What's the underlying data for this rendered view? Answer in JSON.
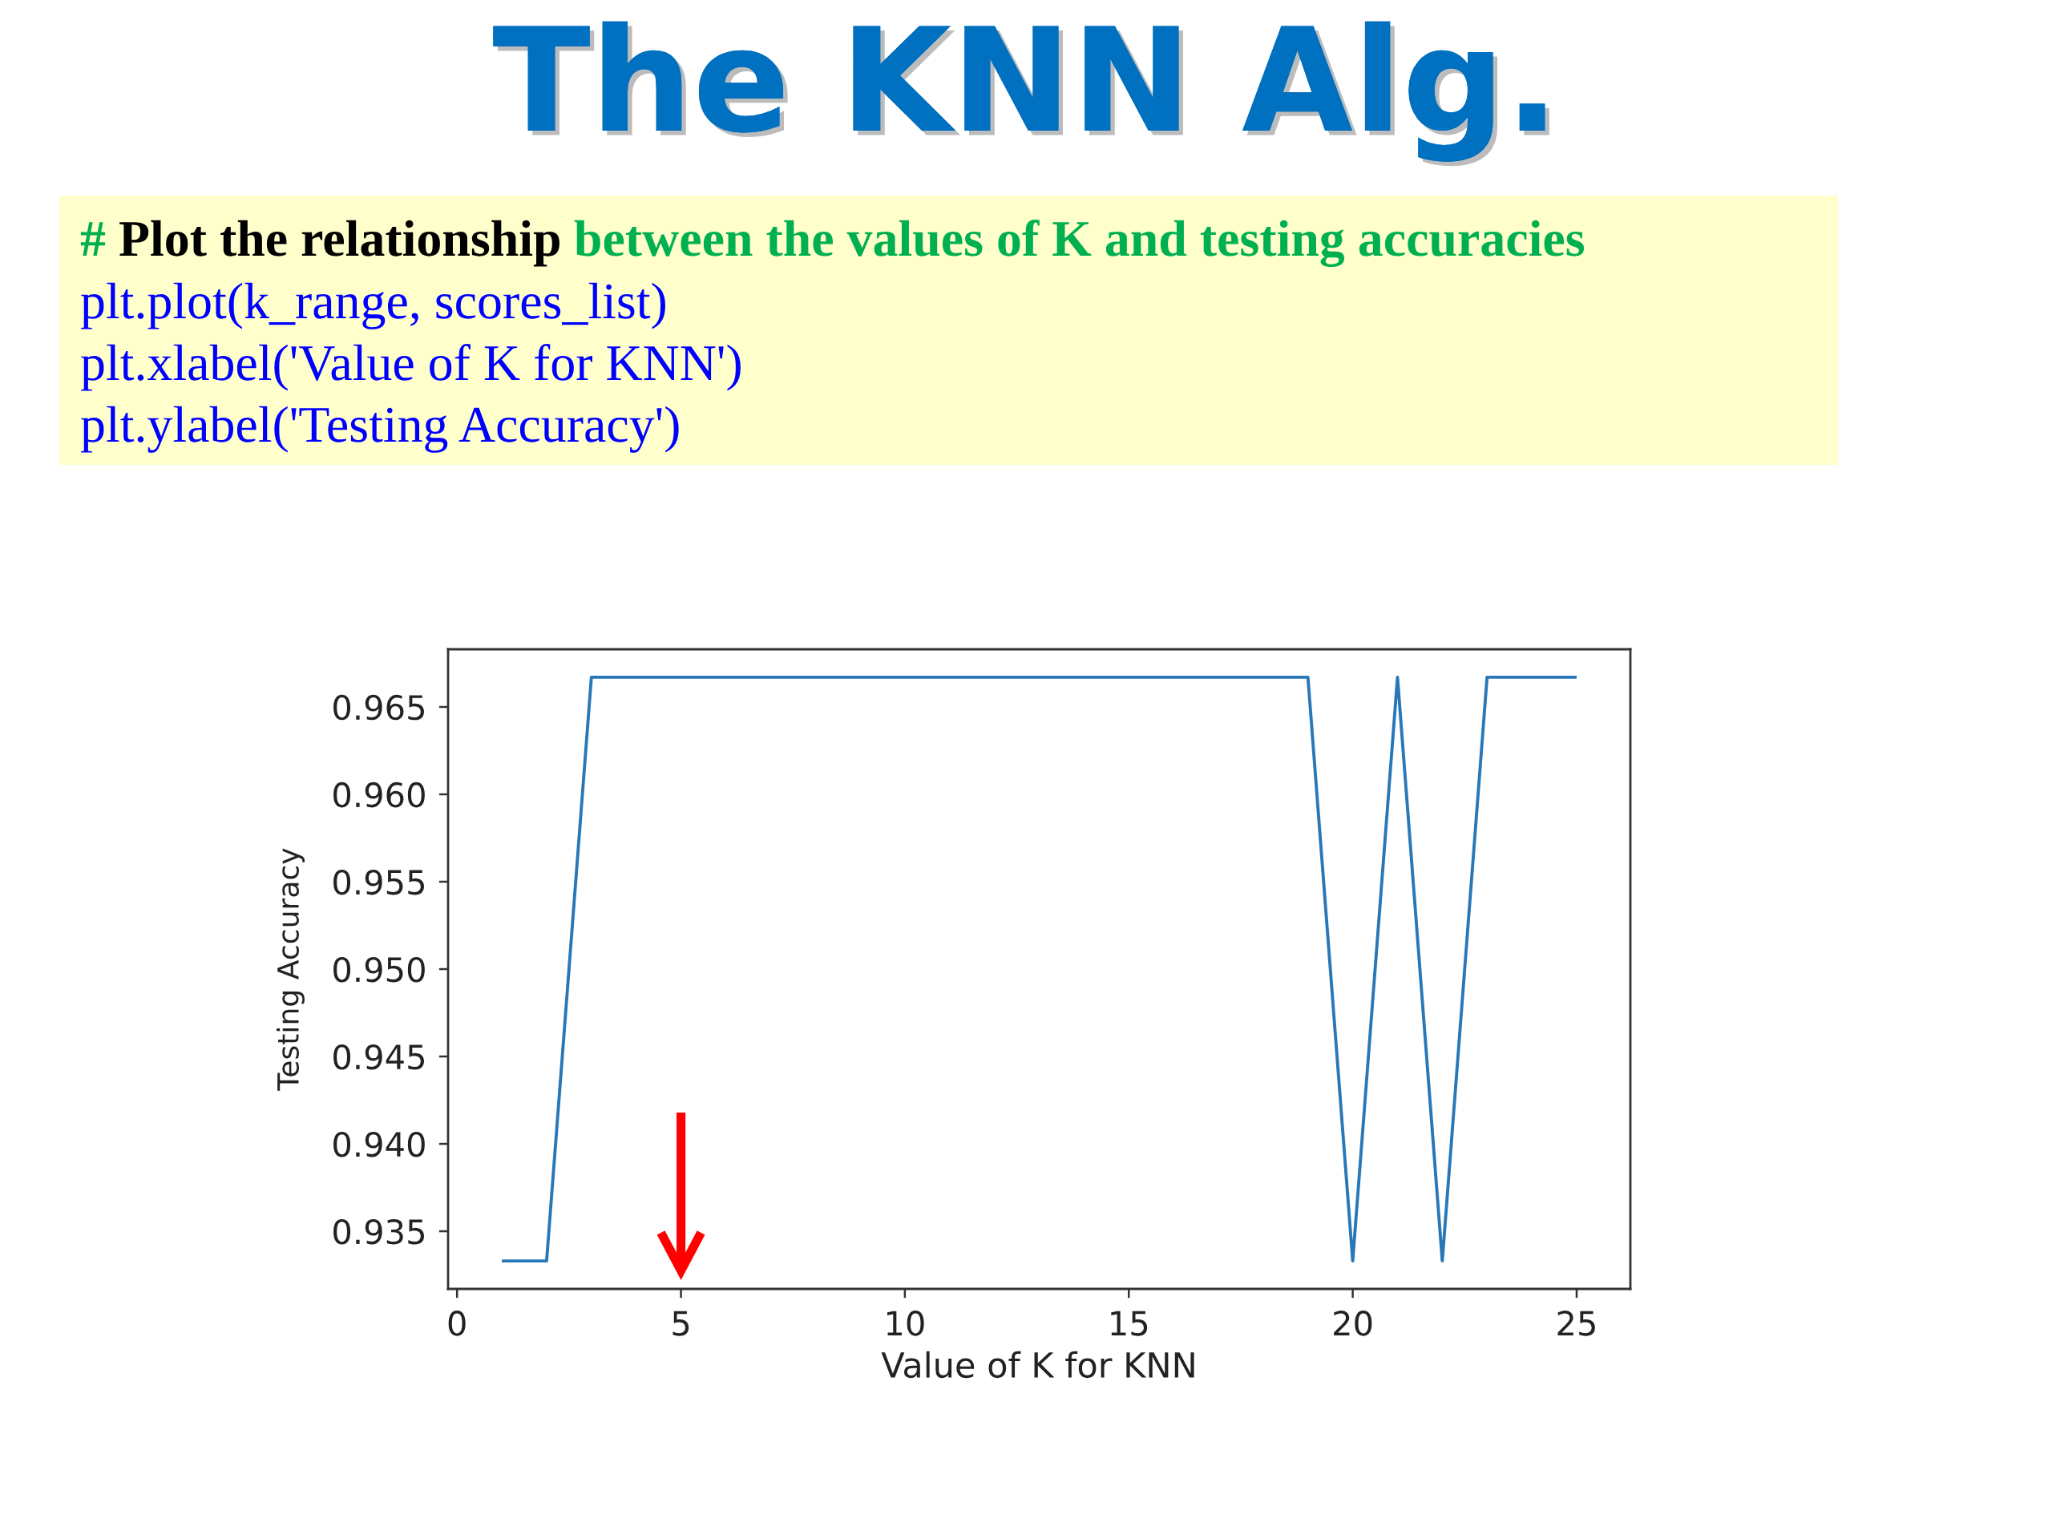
{
  "chart_data": {
    "type": "line",
    "title": "The KNN Alg.",
    "xlabel": "Value of K for KNN",
    "ylabel": "Testing Accuracy",
    "annotations": [
      "#",
      "Plot the relationship",
      "between the values of K and testing accuracies",
      "plt.plot(k_range, scores_list)",
      "plt.xlabel('Value of K for KNN')",
      "plt.ylabel('Testing Accuracy')"
    ],
    "x": [
      1,
      2,
      3,
      4,
      5,
      6,
      7,
      8,
      9,
      10,
      11,
      12,
      13,
      14,
      15,
      16,
      17,
      18,
      19,
      20,
      21,
      22,
      23,
      24,
      25
    ],
    "values": [
      0.9333,
      0.9333,
      0.9667,
      0.9667,
      0.9667,
      0.9667,
      0.9667,
      0.9667,
      0.9667,
      0.9667,
      0.9667,
      0.9667,
      0.9667,
      0.9667,
      0.9667,
      0.9667,
      0.9667,
      0.9667,
      0.9667,
      0.9333,
      0.9667,
      0.9333,
      0.9667,
      0.9667,
      0.9667
    ],
    "color": "#2878b8",
    "xlim": [
      -0.2,
      26.2
    ],
    "ylim": [
      0.9317,
      0.9683
    ],
    "xticks": [
      0,
      5,
      10,
      15,
      20,
      25
    ],
    "yticks": [
      0.935,
      {
        "value": 0.94,
        "label": "0.940"
      },
      0.945,
      {
        "value": 0.95,
        "label": "0.950"
      },
      0.955,
      {
        "value": 0.96,
        "label": "0.960"
      },
      0.965
    ]
  }
}
